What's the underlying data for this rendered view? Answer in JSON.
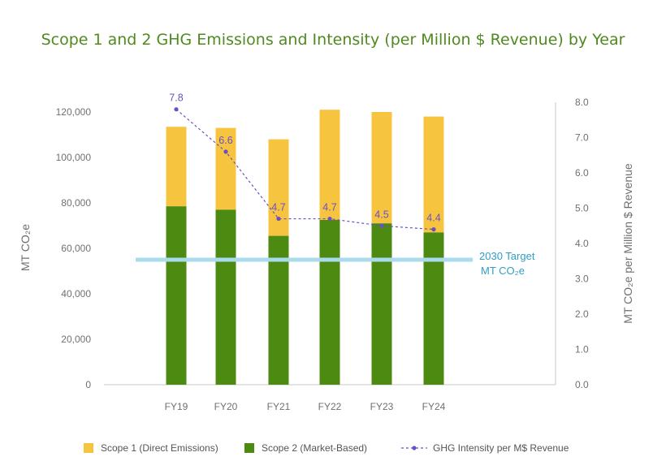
{
  "title": "Scope 1 and 2 GHG Emissions and Intensity (per Million $ Revenue) by Year",
  "colors": {
    "scope1": "#f7c440",
    "scope2": "#4c8a12",
    "intensity": "#6a4fc6",
    "target": "#a8dcec",
    "target_text": "#2f9ec4",
    "axis": "#c8c8c8"
  },
  "target_label_line1": "2030 Target",
  "target_label_line2": "MT CO₂e",
  "chart_data": {
    "type": "bar",
    "categories": [
      "FY19",
      "FY20",
      "FY21",
      "FY22",
      "FY23",
      "FY24"
    ],
    "series": [
      {
        "name": "Scope 1 (Direct Emissions)",
        "kind": "stacked-bar",
        "axis": "left",
        "values": [
          35000,
          36000,
          42500,
          48500,
          49000,
          51000
        ]
      },
      {
        "name": "Scope 2 (Market-Based)",
        "kind": "stacked-bar",
        "axis": "left",
        "values": [
          78500,
          77000,
          65500,
          72500,
          71000,
          67000
        ]
      },
      {
        "name": "GHG Intensity per M$ Revenue",
        "kind": "line",
        "axis": "right",
        "values": [
          7.8,
          6.6,
          4.7,
          4.7,
          4.5,
          4.4
        ],
        "labels": [
          "7.8",
          "6.6",
          "4.7",
          "4.7",
          "4.5",
          "4.4"
        ]
      }
    ],
    "target": {
      "value": 55000,
      "axis": "left"
    },
    "y_left": {
      "label": "MT CO₂e",
      "ylim": [
        0,
        125000
      ],
      "ticks": [
        0,
        20000,
        40000,
        60000,
        80000,
        100000,
        120000
      ],
      "tick_labels": [
        "0",
        "20,000",
        "40,000",
        "60,000",
        "80,000",
        "100,000",
        "120,000"
      ]
    },
    "y_right": {
      "label": "MT CO₂e per Million $ Revenue",
      "ylim": [
        0,
        8.0
      ],
      "ticks": [
        0,
        1,
        2,
        3,
        4,
        5,
        6,
        7,
        8
      ],
      "tick_labels": [
        "0.0",
        "1.0",
        "2.0",
        "3.0",
        "4.0",
        "5.0",
        "6.0",
        "7.0",
        "8.0"
      ]
    },
    "legend": {
      "position": "bottom",
      "items": [
        "Scope 1 (Direct Emissions)",
        "Scope 2 (Market-Based)",
        "GHG Intensity per M$ Revenue"
      ]
    },
    "grid": false
  }
}
